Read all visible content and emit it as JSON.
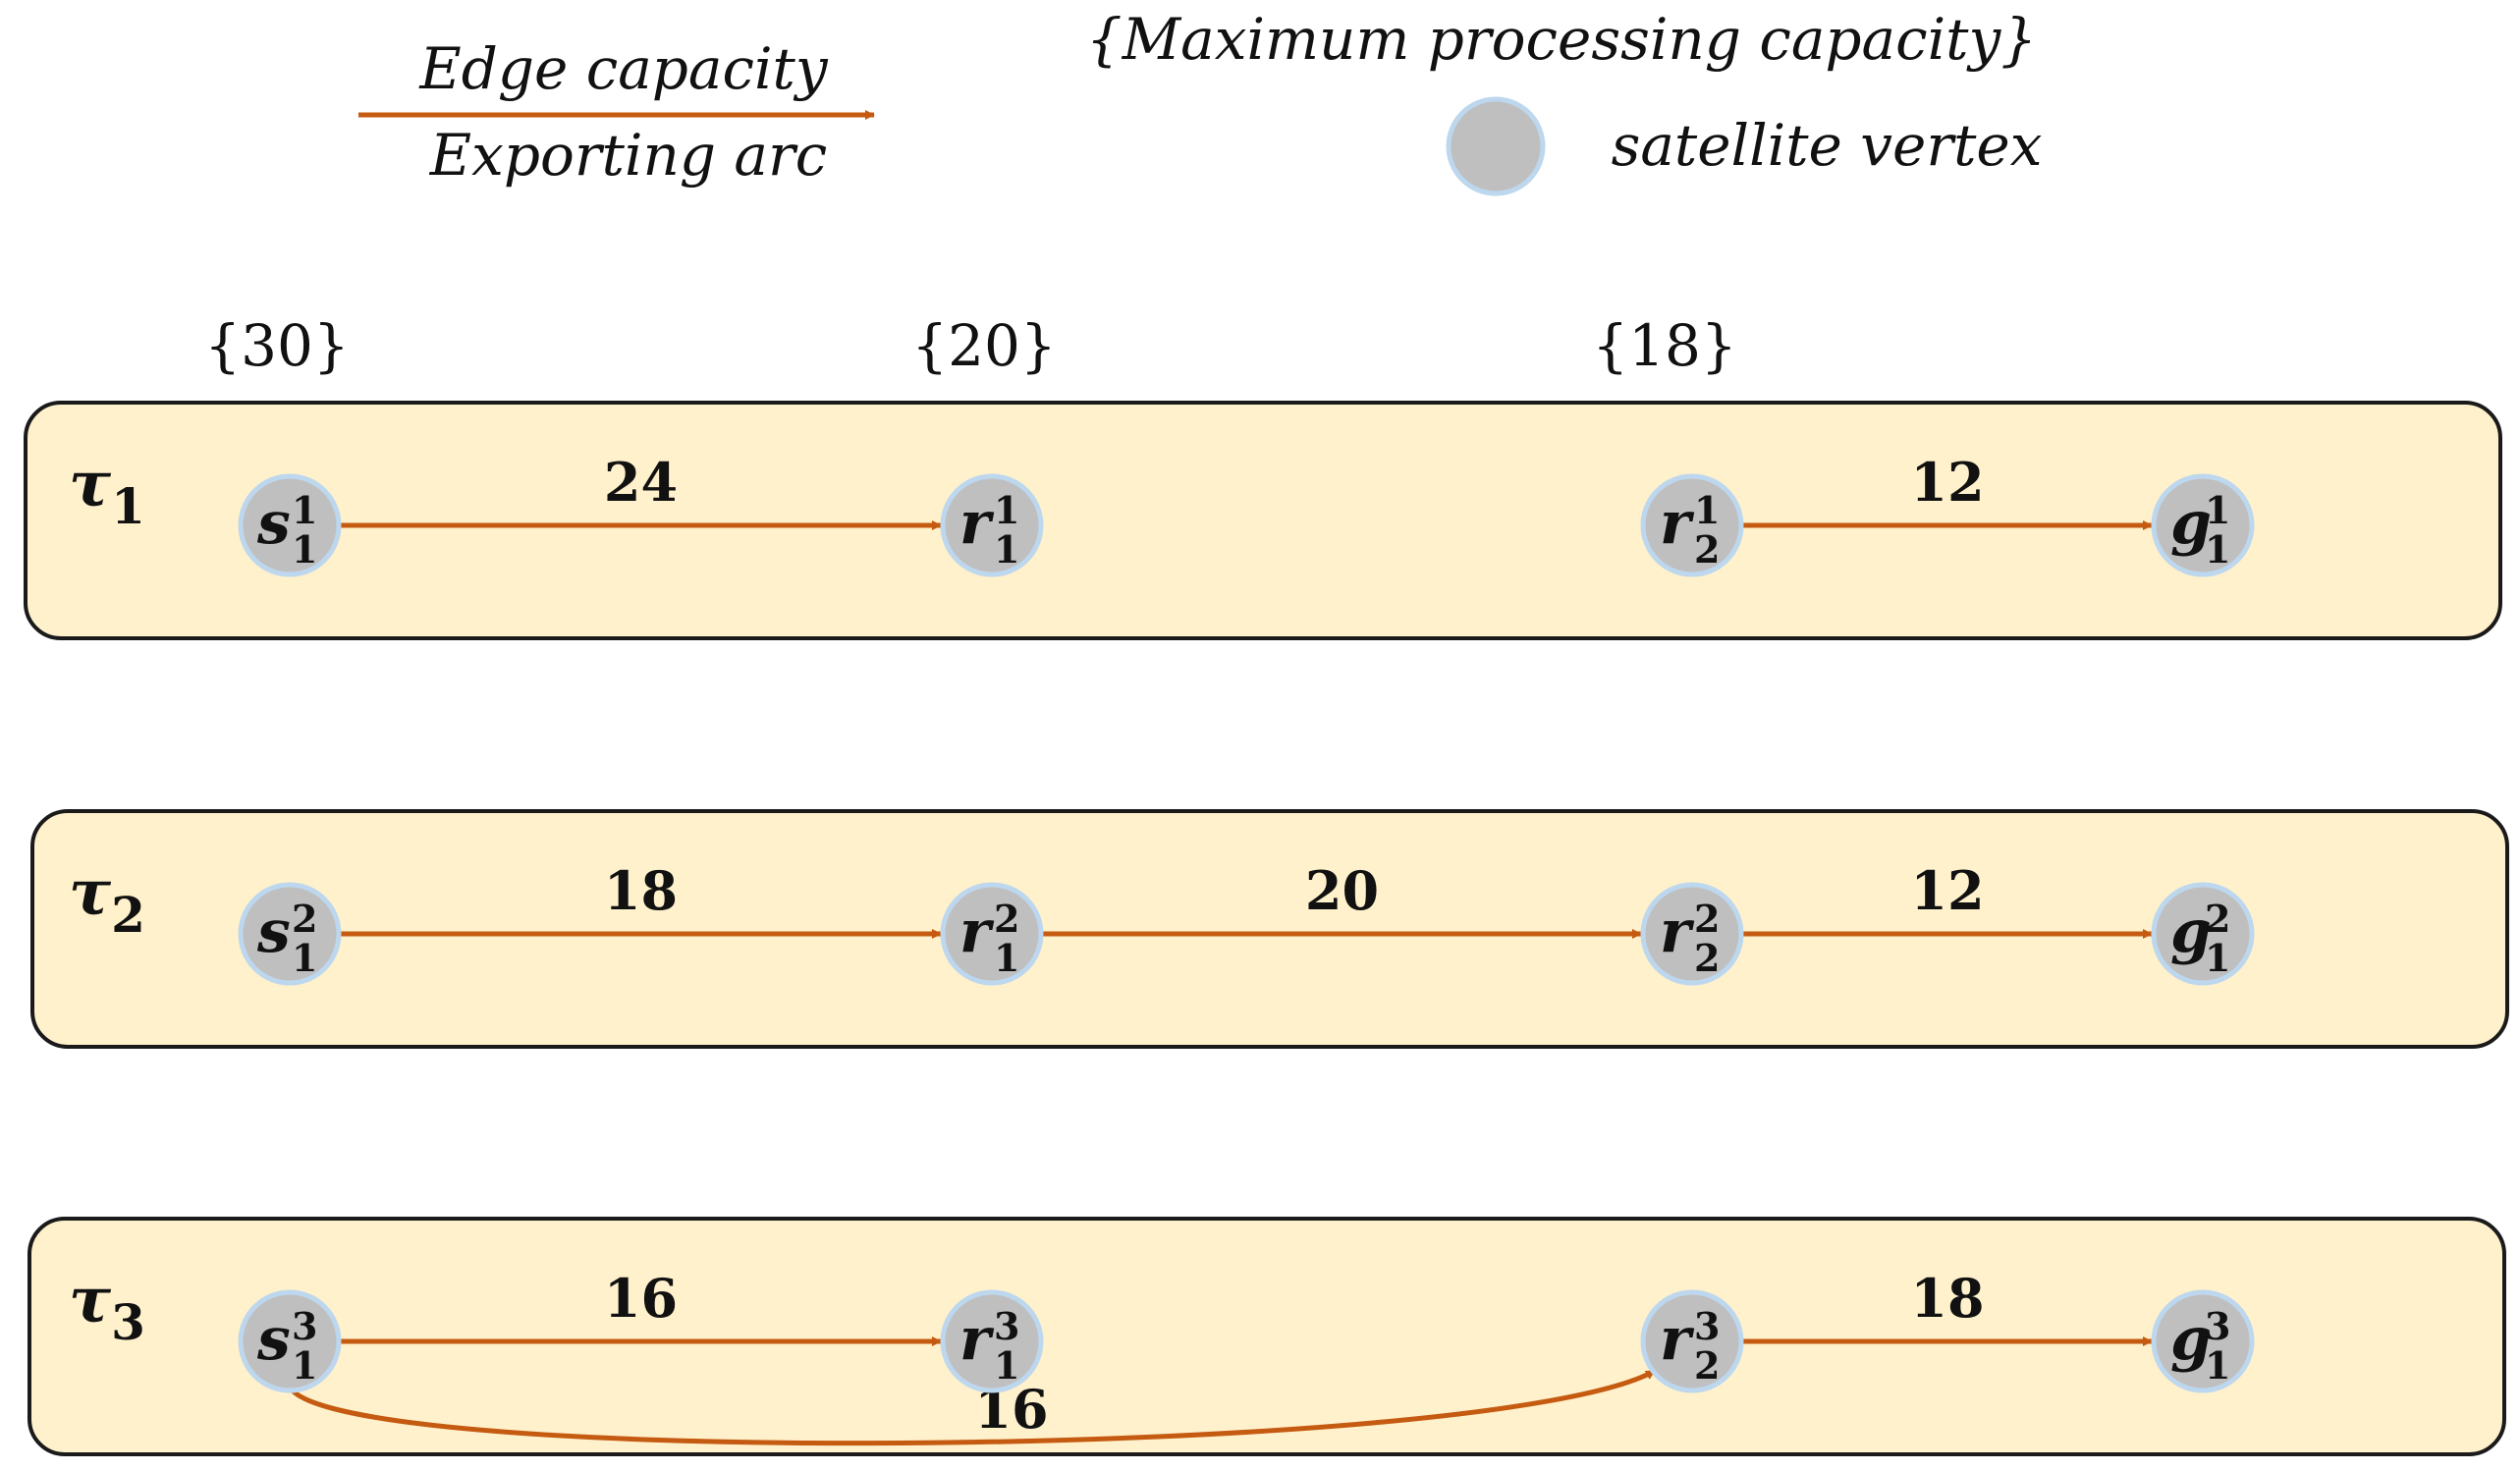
{
  "legend": {
    "edge_capacity": "Edge capacity",
    "exporting_arc": "Exporting arc",
    "max_processing_capacity": "{Maximum processing capacity}",
    "satellite_vertex": "satellite  vertex"
  },
  "capacities": [
    {
      "id": "cap-s1",
      "label": "{30}"
    },
    {
      "id": "cap-r1",
      "label": "{20}"
    },
    {
      "id": "cap-r2",
      "label": "{18}"
    }
  ],
  "colors": {
    "panel_fill": "#FFF1CC",
    "panel_stroke": "#1a1a1a",
    "arc": "#C55A11",
    "node_fill": "#BFBFBF",
    "node_stroke": "#BDD7EE"
  },
  "rows": [
    {
      "label": "τ",
      "label_sub": "1",
      "nodes": [
        {
          "id": "s1",
          "base": "s",
          "sup": "1",
          "sub": "1"
        },
        {
          "id": "r1",
          "base": "r",
          "sup": "1",
          "sub": "1"
        },
        {
          "id": "r2",
          "base": "r",
          "sup": "1",
          "sub": "2"
        },
        {
          "id": "g1",
          "base": "g",
          "sup": "1",
          "sub": "1"
        }
      ],
      "edges": [
        {
          "from": "s1",
          "to": "r1",
          "capacity": "24",
          "curved": false
        },
        {
          "from": "r2",
          "to": "g1",
          "capacity": "12",
          "curved": false
        }
      ]
    },
    {
      "label": "τ",
      "label_sub": "2",
      "nodes": [
        {
          "id": "s1",
          "base": "s",
          "sup": "2",
          "sub": "1"
        },
        {
          "id": "r1",
          "base": "r",
          "sup": "2",
          "sub": "1"
        },
        {
          "id": "r2",
          "base": "r",
          "sup": "2",
          "sub": "2"
        },
        {
          "id": "g1",
          "base": "g",
          "sup": "2",
          "sub": "1"
        }
      ],
      "edges": [
        {
          "from": "s1",
          "to": "r1",
          "capacity": "18",
          "curved": false
        },
        {
          "from": "r1",
          "to": "r2",
          "capacity": "20",
          "curved": false
        },
        {
          "from": "r2",
          "to": "g1",
          "capacity": "12",
          "curved": false
        }
      ]
    },
    {
      "label": "τ",
      "label_sub": "3",
      "nodes": [
        {
          "id": "s1",
          "base": "s",
          "sup": "3",
          "sub": "1"
        },
        {
          "id": "r1",
          "base": "r",
          "sup": "3",
          "sub": "1"
        },
        {
          "id": "r2",
          "base": "r",
          "sup": "3",
          "sub": "2"
        },
        {
          "id": "g1",
          "base": "g",
          "sup": "3",
          "sub": "1"
        }
      ],
      "edges": [
        {
          "from": "s1",
          "to": "r1",
          "capacity": "16",
          "curved": false
        },
        {
          "from": "r2",
          "to": "g1",
          "capacity": "18",
          "curved": false
        },
        {
          "from": "s1",
          "to": "r2",
          "capacity": "16",
          "curved": true
        }
      ]
    }
  ]
}
